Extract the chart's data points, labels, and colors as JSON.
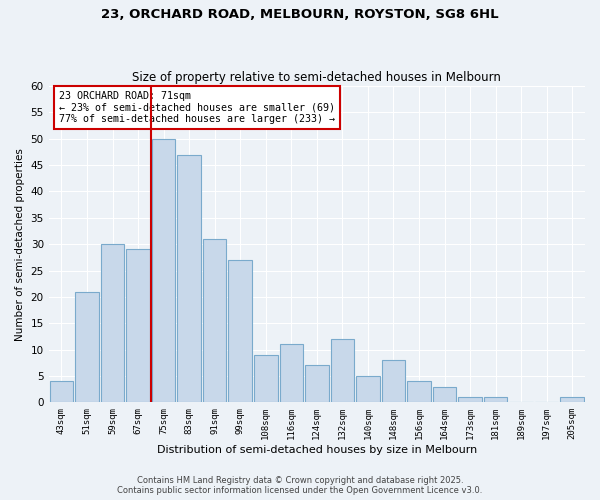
{
  "title1": "23, ORCHARD ROAD, MELBOURN, ROYSTON, SG8 6HL",
  "title2": "Size of property relative to semi-detached houses in Melbourn",
  "xlabel": "Distribution of semi-detached houses by size in Melbourn",
  "ylabel": "Number of semi-detached properties",
  "categories": [
    "43sqm",
    "51sqm",
    "59sqm",
    "67sqm",
    "75sqm",
    "83sqm",
    "91sqm",
    "99sqm",
    "108sqm",
    "116sqm",
    "124sqm",
    "132sqm",
    "140sqm",
    "148sqm",
    "156sqm",
    "164sqm",
    "173sqm",
    "181sqm",
    "189sqm",
    "197sqm",
    "205sqm"
  ],
  "values": [
    4,
    21,
    30,
    29,
    50,
    47,
    31,
    27,
    9,
    11,
    7,
    12,
    5,
    8,
    4,
    3,
    1,
    1,
    0,
    0,
    1
  ],
  "bar_color": "#c8d8ea",
  "bar_edge_color": "#7aaacc",
  "vline_color": "#cc0000",
  "annotation_title": "23 ORCHARD ROAD: 71sqm",
  "annotation_line1": "← 23% of semi-detached houses are smaller (69)",
  "annotation_line2": "77% of semi-detached houses are larger (233) →",
  "annotation_box_color": "#ffffff",
  "annotation_box_edge": "#cc0000",
  "ylim": [
    0,
    60
  ],
  "yticks": [
    0,
    5,
    10,
    15,
    20,
    25,
    30,
    35,
    40,
    45,
    50,
    55,
    60
  ],
  "footnote1": "Contains HM Land Registry data © Crown copyright and database right 2025.",
  "footnote2": "Contains public sector information licensed under the Open Government Licence v3.0.",
  "bg_color": "#edf2f7",
  "grid_color": "#ffffff"
}
